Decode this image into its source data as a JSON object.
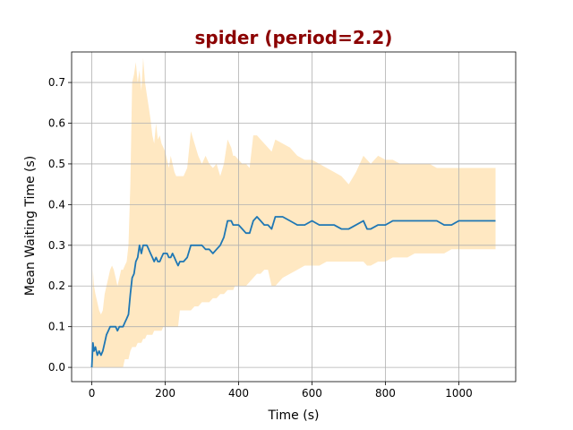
{
  "chart_data": {
    "type": "line",
    "title": "spider (period=2.2)",
    "xlabel": "Time (s)",
    "ylabel": "Mean Waiting Time (s)",
    "xlim": [
      -55,
      1155
    ],
    "ylim": [
      -0.035,
      0.775
    ],
    "xticks": [
      0,
      200,
      400,
      600,
      800,
      1000
    ],
    "yticks": [
      0.0,
      0.1,
      0.2,
      0.3,
      0.4,
      0.5,
      0.6,
      0.7
    ],
    "ytick_labels": [
      "0.0",
      "0.1",
      "0.2",
      "0.3",
      "0.4",
      "0.5",
      "0.6",
      "0.7"
    ],
    "grid": true,
    "title_color": "#8b0000",
    "line_color": "#1f77b4",
    "band_color": "#ffe8c2",
    "series": [
      {
        "x": [
          0,
          3,
          6,
          10,
          15,
          20,
          25,
          30,
          35,
          40,
          45,
          50,
          55,
          60,
          65,
          70,
          75,
          80,
          85,
          90,
          95,
          100,
          105,
          110,
          115,
          120,
          125,
          130,
          135,
          140,
          145,
          150,
          155,
          160,
          165,
          170,
          175,
          180,
          185,
          190,
          195,
          200,
          205,
          210,
          215,
          220,
          225,
          230,
          235,
          240,
          250,
          260,
          270,
          280,
          290,
          300,
          310,
          320,
          330,
          340,
          350,
          360,
          370,
          380,
          385,
          390,
          400,
          410,
          420,
          430,
          440,
          450,
          460,
          470,
          480,
          490,
          500,
          520,
          540,
          560,
          580,
          600,
          620,
          640,
          660,
          680,
          700,
          720,
          740,
          750,
          760,
          780,
          800,
          820,
          840,
          860,
          880,
          900,
          920,
          940,
          960,
          980,
          1000,
          1010,
          1020,
          1050,
          1100
        ],
        "y": [
          0.0,
          0.06,
          0.04,
          0.05,
          0.03,
          0.04,
          0.03,
          0.04,
          0.06,
          0.08,
          0.09,
          0.1,
          0.1,
          0.1,
          0.1,
          0.09,
          0.1,
          0.1,
          0.1,
          0.11,
          0.12,
          0.13,
          0.18,
          0.22,
          0.23,
          0.26,
          0.27,
          0.3,
          0.28,
          0.3,
          0.3,
          0.3,
          0.29,
          0.28,
          0.27,
          0.26,
          0.27,
          0.26,
          0.26,
          0.27,
          0.28,
          0.28,
          0.28,
          0.27,
          0.27,
          0.28,
          0.27,
          0.26,
          0.25,
          0.26,
          0.26,
          0.27,
          0.3,
          0.3,
          0.3,
          0.3,
          0.29,
          0.29,
          0.28,
          0.29,
          0.3,
          0.32,
          0.36,
          0.36,
          0.35,
          0.35,
          0.35,
          0.34,
          0.33,
          0.33,
          0.36,
          0.37,
          0.36,
          0.35,
          0.35,
          0.34,
          0.37,
          0.37,
          0.36,
          0.35,
          0.35,
          0.36,
          0.35,
          0.35,
          0.35,
          0.34,
          0.34,
          0.35,
          0.36,
          0.34,
          0.34,
          0.35,
          0.35,
          0.36,
          0.36,
          0.36,
          0.36,
          0.36,
          0.36,
          0.36,
          0.35,
          0.35,
          0.36,
          0.36,
          0.36,
          0.36,
          0.36
        ],
        "upper": [
          0.0,
          0.24,
          0.2,
          0.18,
          0.16,
          0.14,
          0.13,
          0.14,
          0.18,
          0.2,
          0.22,
          0.24,
          0.25,
          0.24,
          0.22,
          0.2,
          0.22,
          0.24,
          0.24,
          0.25,
          0.26,
          0.3,
          0.45,
          0.7,
          0.72,
          0.75,
          0.7,
          0.73,
          0.68,
          0.76,
          0.7,
          0.67,
          0.64,
          0.61,
          0.57,
          0.55,
          0.6,
          0.56,
          0.57,
          0.55,
          0.54,
          0.53,
          0.51,
          0.49,
          0.52,
          0.5,
          0.48,
          0.47,
          0.47,
          0.47,
          0.47,
          0.49,
          0.58,
          0.55,
          0.52,
          0.5,
          0.52,
          0.5,
          0.49,
          0.5,
          0.47,
          0.5,
          0.56,
          0.54,
          0.52,
          0.52,
          0.51,
          0.5,
          0.5,
          0.49,
          0.57,
          0.57,
          0.56,
          0.55,
          0.54,
          0.53,
          0.56,
          0.55,
          0.54,
          0.52,
          0.51,
          0.51,
          0.5,
          0.49,
          0.48,
          0.47,
          0.45,
          0.48,
          0.52,
          0.51,
          0.5,
          0.52,
          0.51,
          0.51,
          0.5,
          0.5,
          0.5,
          0.5,
          0.5,
          0.49,
          0.49,
          0.49,
          0.49,
          0.49,
          0.49,
          0.49,
          0.49
        ],
        "lower": [
          0.0,
          0.0,
          0.0,
          0.0,
          0.0,
          0.0,
          0.0,
          0.0,
          0.0,
          0.0,
          0.0,
          0.0,
          0.0,
          0.0,
          0.0,
          0.0,
          0.0,
          0.0,
          0.0,
          0.02,
          0.02,
          0.02,
          0.04,
          0.05,
          0.05,
          0.05,
          0.06,
          0.06,
          0.06,
          0.07,
          0.07,
          0.08,
          0.08,
          0.08,
          0.08,
          0.09,
          0.09,
          0.09,
          0.09,
          0.09,
          0.1,
          0.1,
          0.1,
          0.1,
          0.1,
          0.1,
          0.1,
          0.1,
          0.1,
          0.14,
          0.14,
          0.14,
          0.14,
          0.15,
          0.15,
          0.16,
          0.16,
          0.16,
          0.17,
          0.17,
          0.18,
          0.18,
          0.19,
          0.19,
          0.19,
          0.2,
          0.2,
          0.2,
          0.2,
          0.21,
          0.22,
          0.23,
          0.23,
          0.24,
          0.24,
          0.2,
          0.2,
          0.22,
          0.23,
          0.24,
          0.25,
          0.25,
          0.25,
          0.26,
          0.26,
          0.26,
          0.26,
          0.26,
          0.26,
          0.25,
          0.25,
          0.26,
          0.26,
          0.27,
          0.27,
          0.27,
          0.28,
          0.28,
          0.28,
          0.28,
          0.28,
          0.29,
          0.29,
          0.29,
          0.29,
          0.29,
          0.29
        ]
      }
    ]
  }
}
